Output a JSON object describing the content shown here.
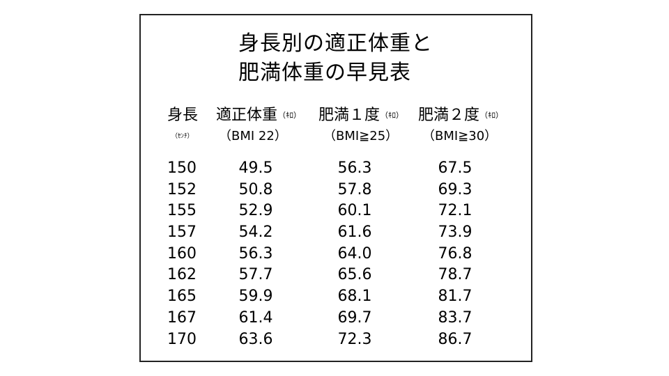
{
  "title": {
    "line1": "身長別の適正体重と",
    "line2": "肥満体重の早見表"
  },
  "headers": {
    "height": {
      "label": "身長",
      "unit": "（ｾﾝﾁ）"
    },
    "standard": {
      "label": "適正体重",
      "unit": "（ｷﾛ）",
      "criterion": "（BMI 22）"
    },
    "obese1": {
      "label": "肥満１度",
      "unit": "（ｷﾛ）",
      "criterion": "（BMI≧25）"
    },
    "obese2": {
      "label": "肥満２度",
      "unit": "（ｷﾛ）",
      "criterion": "（BMI≧30）"
    }
  },
  "rows": [
    {
      "height": "150",
      "standard": "49.5",
      "obese1": "56.3",
      "obese2": "67.5"
    },
    {
      "height": "152",
      "standard": "50.8",
      "obese1": "57.8",
      "obese2": "69.3"
    },
    {
      "height": "155",
      "standard": "52.9",
      "obese1": "60.1",
      "obese2": "72.1"
    },
    {
      "height": "157",
      "standard": "54.2",
      "obese1": "61.6",
      "obese2": "73.9"
    },
    {
      "height": "160",
      "standard": "56.3",
      "obese1": "64.0",
      "obese2": "76.8"
    },
    {
      "height": "162",
      "standard": "57.7",
      "obese1": "65.6",
      "obese2": "78.7"
    },
    {
      "height": "165",
      "standard": "59.9",
      "obese1": "68.1",
      "obese2": "81.7"
    },
    {
      "height": "167",
      "standard": "61.4",
      "obese1": "69.7",
      "obese2": "83.7"
    },
    {
      "height": "170",
      "standard": "63.6",
      "obese1": "72.3",
      "obese2": "86.7"
    }
  ]
}
